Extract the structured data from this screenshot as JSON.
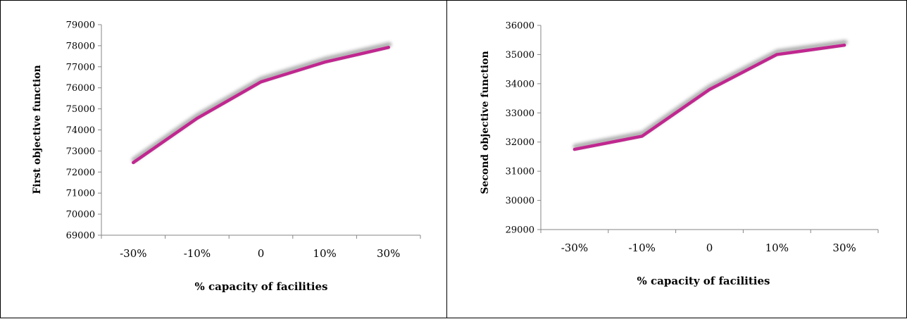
{
  "chart_data": [
    {
      "type": "line",
      "categories": [
        "-30%",
        "-10%",
        "0",
        "10%",
        "30%"
      ],
      "series": [
        {
          "values": [
            72450,
            74550,
            76280,
            77220,
            77920
          ],
          "color": "#c0278f"
        }
      ],
      "title": "",
      "xlabel": "% capacity of facilities",
      "ylabel": "First objective function",
      "ylim": [
        69000,
        79000
      ],
      "yticks": [
        69000,
        70000,
        71000,
        72000,
        73000,
        74000,
        75000,
        76000,
        77000,
        78000,
        79000
      ],
      "grid": false,
      "legend": "none"
    },
    {
      "type": "line",
      "categories": [
        "-30%",
        "-10%",
        "0",
        "10%",
        "30%"
      ],
      "series": [
        {
          "values": [
            31750,
            32200,
            33800,
            35000,
            35320
          ],
          "color": "#c0278f"
        }
      ],
      "title": "",
      "xlabel": "% capacity of facilities",
      "ylabel": "Second objective function",
      "ylim": [
        29000,
        36000
      ],
      "yticks": [
        29000,
        30000,
        31000,
        32000,
        33000,
        34000,
        35000,
        36000
      ],
      "grid": false,
      "legend": "none"
    }
  ]
}
